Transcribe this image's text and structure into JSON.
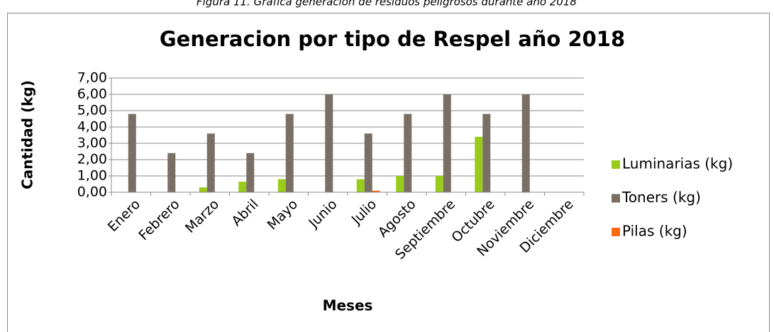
{
  "caption": "Figura 11. Gráfica generación de residuos peligrosos durante año 2018",
  "chart_data": {
    "type": "bar",
    "title": "Generacion por tipo de Respel año 2018",
    "x_label": "Meses",
    "y_label": "Cantidad (kg)",
    "categories": [
      "Enero",
      "Febrero",
      "Marzo",
      "Abril",
      "Mayo",
      "Junio",
      "Julio",
      "Agosto",
      "Septiembre",
      "Octubre",
      "Noviembre",
      "Diciembre"
    ],
    "series": [
      {
        "name": "Luminarias (kg)",
        "color": "#99cc1a",
        "values": [
          0,
          0,
          0.3,
          0.65,
          0.8,
          0,
          0.8,
          1.0,
          1.0,
          3.4,
          0,
          0
        ]
      },
      {
        "name": "Toners (kg)",
        "color": "#7a6f64",
        "values": [
          4.8,
          2.4,
          3.6,
          2.4,
          4.8,
          6.0,
          3.6,
          4.8,
          6.0,
          4.8,
          6.0,
          0
        ]
      },
      {
        "name": "Pilas (kg)",
        "color": "#ff6a10",
        "values": [
          0,
          0,
          0,
          0,
          0,
          0,
          0.1,
          0,
          0,
          0,
          0,
          0
        ]
      }
    ],
    "ylim": [
      0,
      7
    ],
    "yticks": [
      {
        "value": 0,
        "label": "0,00"
      },
      {
        "value": 1,
        "label": "1,00"
      },
      {
        "value": 2,
        "label": "2,00"
      },
      {
        "value": 3,
        "label": "3,00"
      },
      {
        "value": 4,
        "label": "4,00"
      },
      {
        "value": 5,
        "label": "5,00"
      },
      {
        "value": 6,
        "label": "6,00"
      },
      {
        "value": 7,
        "label": "7,00"
      }
    ],
    "grid": true,
    "legend": "right"
  }
}
